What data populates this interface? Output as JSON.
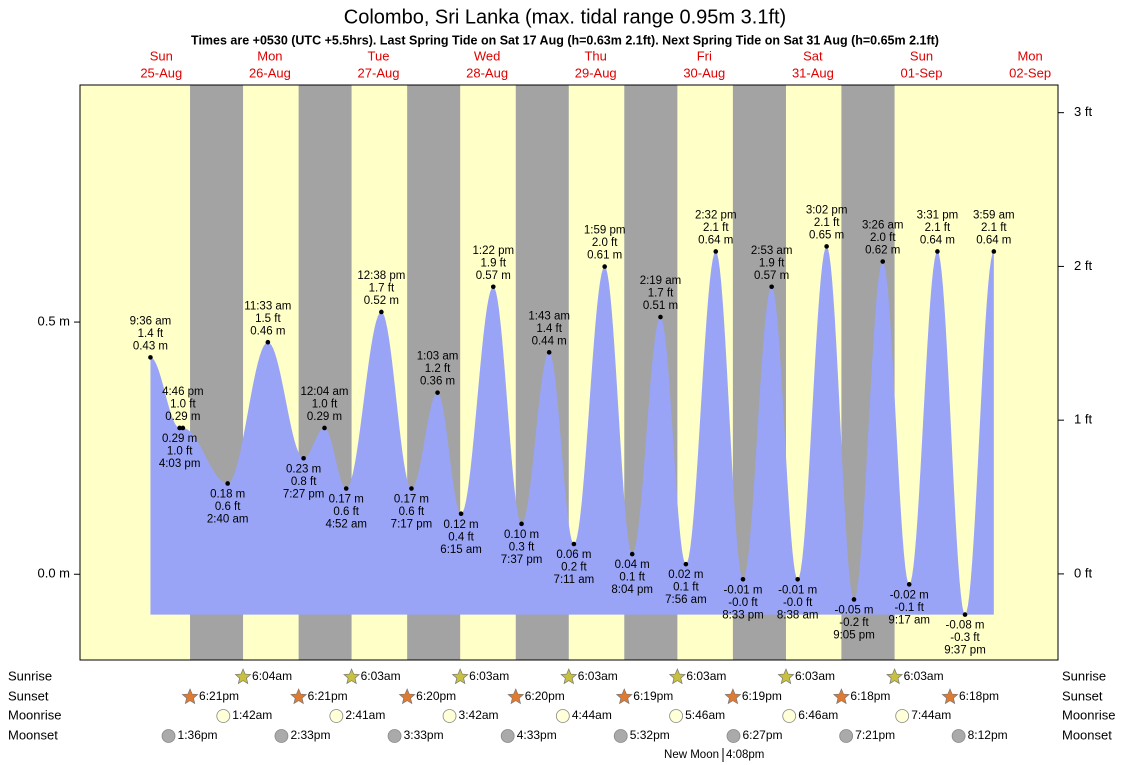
{
  "chart_data": {
    "type": "tide",
    "title": "Colombo, Sri Lanka (max. tidal range 0.95m 3.1ft)",
    "subtitle": "Times are +0530 (UTC +5.5hrs). Last Spring Tide on Sat 17 Aug (h=0.63m 2.1ft). Next Spring Tide on Sat 31 Aug (h=0.65m 2.1ft)",
    "ylim": [
      -0.17,
      0.97
    ],
    "yticks": [
      {
        "value": 0,
        "label": "0.0 m"
      },
      {
        "value": 0.5,
        "label": "0.5 m"
      }
    ],
    "y2lim": [
      -0.56,
      3.18
    ],
    "y2ticks": [
      {
        "value": 0,
        "label": "0 ft"
      },
      {
        "value": 1,
        "label": "1 ft"
      },
      {
        "value": 2,
        "label": "2 ft"
      },
      {
        "value": 3,
        "label": "3 ft"
      }
    ],
    "colors": {
      "day": "#ffffc8",
      "night": "#a3a3a3",
      "area": "#99a4f6",
      "sunrise": "#c8c040",
      "sunset": "#e07a30",
      "moonrise": "#ffffd8",
      "moonset": "#aaaaaa"
    },
    "row_labels": {
      "sunrise": "Sunrise",
      "sunset": "Sunset",
      "moonrise": "Moonrise",
      "moonset": "Moonset"
    },
    "days": [
      {
        "weekday": "Sun",
        "date": "25-Aug",
        "sunset": "6:21pm",
        "moonset": "1:36pm",
        "tides": [
          {
            "time": "9:36 am",
            "m": 0.43,
            "m_label": "0.43 m",
            "ft": 1.4,
            "ft_label": "1.4 ft"
          },
          {
            "time": "4:03 pm",
            "m": 0.29,
            "m_label": "0.29 m",
            "ft": 1.0,
            "ft_label": "1.0 ft"
          },
          {
            "time": "4:46 pm",
            "m": 0.29,
            "m_label": "0.29 m",
            "ft": 1.0,
            "ft_label": "1.0 ft"
          }
        ]
      },
      {
        "weekday": "Mon",
        "date": "26-Aug",
        "sunrise": "6:04am",
        "sunset": "6:21pm",
        "moonrise": "1:42am",
        "moonset": "2:33pm",
        "tides": [
          {
            "time": "2:40 am",
            "m": 0.18,
            "m_label": "0.18 m",
            "ft": 0.6,
            "ft_label": "0.6 ft"
          },
          {
            "time": "11:33 am",
            "m": 0.46,
            "m_label": "0.46 m",
            "ft": 1.5,
            "ft_label": "1.5 ft"
          },
          {
            "time": "7:27 pm",
            "m": 0.23,
            "m_label": "0.23 m",
            "ft": 0.8,
            "ft_label": "0.8 ft"
          }
        ]
      },
      {
        "weekday": "Tue",
        "date": "27-Aug",
        "sunrise": "6:03am",
        "sunset": "6:20pm",
        "moonrise": "2:41am",
        "moonset": "3:33pm",
        "tides": [
          {
            "time": "12:04 am",
            "m": 0.29,
            "m_label": "0.29 m",
            "ft": 1.0,
            "ft_label": "1.0 ft"
          },
          {
            "time": "4:52 am",
            "m": 0.17,
            "m_label": "0.17 m",
            "ft": 0.6,
            "ft_label": "0.6 ft"
          },
          {
            "time": "12:38 pm",
            "m": 0.52,
            "m_label": "0.52 m",
            "ft": 1.7,
            "ft_label": "1.7 ft"
          },
          {
            "time": "7:17 pm",
            "m": 0.17,
            "m_label": "0.17 m",
            "ft": 0.6,
            "ft_label": "0.6 ft"
          }
        ]
      },
      {
        "weekday": "Wed",
        "date": "28-Aug",
        "sunrise": "6:03am",
        "sunset": "6:20pm",
        "moonrise": "3:42am",
        "moonset": "4:33pm",
        "tides": [
          {
            "time": "1:03 am",
            "m": 0.36,
            "m_label": "0.36 m",
            "ft": 1.2,
            "ft_label": "1.2 ft"
          },
          {
            "time": "6:15 am",
            "m": 0.12,
            "m_label": "0.12 m",
            "ft": 0.4,
            "ft_label": "0.4 ft"
          },
          {
            "time": "1:22 pm",
            "m": 0.57,
            "m_label": "0.57 m",
            "ft": 1.9,
            "ft_label": "1.9 ft"
          },
          {
            "time": "7:37 pm",
            "m": 0.1,
            "m_label": "0.10 m",
            "ft": 0.3,
            "ft_label": "0.3 ft"
          }
        ]
      },
      {
        "weekday": "Thu",
        "date": "29-Aug",
        "sunrise": "6:03am",
        "sunset": "6:19pm",
        "moonrise": "4:44am",
        "moonset": "5:32pm",
        "tides": [
          {
            "time": "1:43 am",
            "m": 0.44,
            "m_label": "0.44 m",
            "ft": 1.4,
            "ft_label": "1.4 ft"
          },
          {
            "time": "7:11 am",
            "m": 0.06,
            "m_label": "0.06 m",
            "ft": 0.2,
            "ft_label": "0.2 ft"
          },
          {
            "time": "1:59 pm",
            "m": 0.61,
            "m_label": "0.61 m",
            "ft": 2.0,
            "ft_label": "2.0 ft"
          },
          {
            "time": "8:04 pm",
            "m": 0.04,
            "m_label": "0.04 m",
            "ft": 0.1,
            "ft_label": "0.1 ft"
          }
        ]
      },
      {
        "weekday": "Fri",
        "date": "30-Aug",
        "sunrise": "6:03am",
        "sunset": "6:19pm",
        "moonrise": "5:46am",
        "moonset": "6:27pm",
        "new_moon": {
          "label": "New Moon",
          "time": "4:08pm"
        },
        "tides": [
          {
            "time": "2:19 am",
            "m": 0.51,
            "m_label": "0.51 m",
            "ft": 1.7,
            "ft_label": "1.7 ft"
          },
          {
            "time": "7:56 am",
            "m": 0.02,
            "m_label": "0.02 m",
            "ft": 0.1,
            "ft_label": "0.1 ft"
          },
          {
            "time": "2:32 pm",
            "m": 0.64,
            "m_label": "0.64 m",
            "ft": 2.1,
            "ft_label": "2.1 ft"
          },
          {
            "time": "8:33 pm",
            "m": -0.01,
            "m_label": "-0.01 m",
            "ft": -0.0,
            "ft_label": "-0.0 ft"
          }
        ]
      },
      {
        "weekday": "Sat",
        "date": "31-Aug",
        "sunrise": "6:03am",
        "sunset": "6:18pm",
        "moonrise": "6:46am",
        "moonset": "7:21pm",
        "tides": [
          {
            "time": "2:53 am",
            "m": 0.57,
            "m_label": "0.57 m",
            "ft": 1.9,
            "ft_label": "1.9 ft"
          },
          {
            "time": "8:38 am",
            "m": -0.01,
            "m_label": "-0.01 m",
            "ft": -0.0,
            "ft_label": "-0.0 ft"
          },
          {
            "time": "3:02 pm",
            "m": 0.65,
            "m_label": "0.65 m",
            "ft": 2.1,
            "ft_label": "2.1 ft"
          },
          {
            "time": "9:05 pm",
            "m": -0.05,
            "m_label": "-0.05 m",
            "ft": -0.2,
            "ft_label": "-0.2 ft"
          }
        ]
      },
      {
        "weekday": "Sun",
        "date": "01-Sep",
        "sunrise": "6:03am",
        "sunset": "6:18pm",
        "moonrise": "7:44am",
        "moonset": "8:12pm",
        "tides": [
          {
            "time": "3:26 am",
            "m": 0.62,
            "m_label": "0.62 m",
            "ft": 2.0,
            "ft_label": "2.0 ft"
          },
          {
            "time": "9:17 am",
            "m": -0.02,
            "m_label": "-0.02 m",
            "ft": -0.1,
            "ft_label": "-0.1 ft"
          },
          {
            "time": "3:31 pm",
            "m": 0.64,
            "m_label": "0.64 m",
            "ft": 2.1,
            "ft_label": "2.1 ft"
          },
          {
            "time": "9:37 pm",
            "m": -0.08,
            "m_label": "-0.08 m",
            "ft": -0.3,
            "ft_label": "-0.3 ft"
          }
        ]
      },
      {
        "weekday": "Mon",
        "date": "02-Sep",
        "tides": [
          {
            "time": "3:59 am",
            "m": 0.64,
            "m_label": "0.64 m",
            "ft": 2.1,
            "ft_label": "2.1 ft"
          }
        ]
      }
    ]
  }
}
